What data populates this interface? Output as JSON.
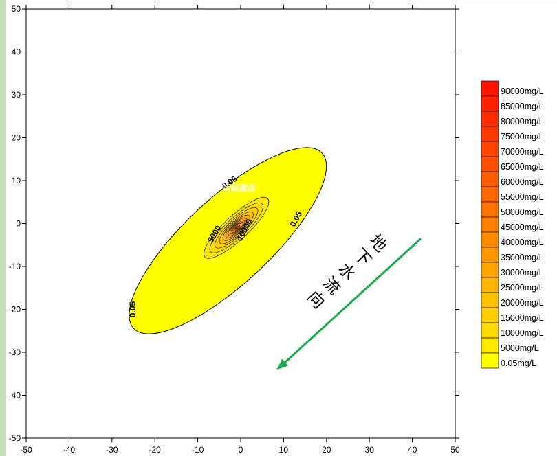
{
  "chart_data": {
    "type": "contour",
    "xlim": [
      -50,
      50
    ],
    "ylim": [
      -50,
      50
    ],
    "x_ticks": [
      -50,
      -40,
      -30,
      -20,
      -10,
      0,
      10,
      20,
      30,
      40,
      50
    ],
    "y_ticks": [
      -50,
      -40,
      -30,
      -20,
      -10,
      0,
      10,
      20,
      30,
      40,
      50
    ],
    "grid": false,
    "source": {
      "label": "污染源点",
      "x": -1,
      "y": -1
    },
    "plume": {
      "outer_contour_value": "0.05",
      "center": [
        -3,
        -4
      ],
      "orientation_deg": 43,
      "semi_major": 30,
      "semi_minor": 10,
      "fill_color": "#ffff00"
    },
    "inner_contours": [
      {
        "value": 5000,
        "rx": 10,
        "ry": 2.8,
        "color": "#ffe600"
      },
      {
        "value": 10000,
        "rx": 8.2,
        "ry": 2.3,
        "color": "#ffdc00"
      },
      {
        "value": 15000,
        "rx": 6.6,
        "ry": 1.9,
        "color": "#ffd000"
      },
      {
        "value": 20000,
        "rx": 5.2,
        "ry": 1.6,
        "color": "#ffc300"
      },
      {
        "value": 25000,
        "rx": 4.1,
        "ry": 1.35,
        "color": "#ffb500"
      },
      {
        "value": 30000,
        "rx": 3.2,
        "ry": 1.15,
        "color": "#ffa700"
      },
      {
        "value": 35000,
        "rx": 2.5,
        "ry": 0.95,
        "color": "#ff9a00"
      },
      {
        "value": 40000,
        "rx": 1.9,
        "ry": 0.8,
        "color": "#ff8c00"
      },
      {
        "value": 45000,
        "rx": 1.4,
        "ry": 0.65,
        "color": "#ff7e00"
      },
      {
        "value": 50000,
        "rx": 1.0,
        "ry": 0.5,
        "color": "#ff7000"
      }
    ],
    "contour_labels": [
      {
        "text": "0.05",
        "x": -2.5,
        "y": 9.5,
        "angle": -35
      },
      {
        "text": "0.05",
        "x": 13,
        "y": 1,
        "angle": -62
      },
      {
        "text": "0.05",
        "x": -25,
        "y": -20,
        "angle": -90
      },
      {
        "text": "5000",
        "x": -6,
        "y": -2.5,
        "angle": -60
      },
      {
        "text": "10000",
        "x": 1,
        "y": -1.5,
        "angle": -62
      }
    ],
    "flow_arrow": {
      "from": [
        42,
        -3.5
      ],
      "to": [
        8.5,
        -34
      ],
      "color": "#1aaa4c",
      "text_chars": [
        "地",
        "下",
        "水",
        "流",
        "向"
      ]
    },
    "legend": {
      "placement": "right",
      "entries": [
        {
          "label": "90000mg/L",
          "color": "#ff1400"
        },
        {
          "label": "85000mg/L",
          "color": "#ff2000"
        },
        {
          "label": "80000mg/L",
          "color": "#ff2c00"
        },
        {
          "label": "75000mg/L",
          "color": "#ff3800"
        },
        {
          "label": "70000mg/L",
          "color": "#ff4400"
        },
        {
          "label": "65000mg/L",
          "color": "#ff5000"
        },
        {
          "label": "60000mg/L",
          "color": "#ff5c00"
        },
        {
          "label": "55000mg/L",
          "color": "#ff6800"
        },
        {
          "label": "50000mg/L",
          "color": "#ff7400"
        },
        {
          "label": "45000mg/L",
          "color": "#ff8000"
        },
        {
          "label": "40000mg/L",
          "color": "#ff8c00"
        },
        {
          "label": "35000mg/L",
          "color": "#ff9800"
        },
        {
          "label": "30000mg/L",
          "color": "#ffa600"
        },
        {
          "label": "25000mg/L",
          "color": "#ffb400"
        },
        {
          "label": "20000mg/L",
          "color": "#ffc200"
        },
        {
          "label": "15000mg/L",
          "color": "#ffcf00"
        },
        {
          "label": "10000mg/L",
          "color": "#ffdc00"
        },
        {
          "label": "5000mg/L",
          "color": "#ffea00"
        },
        {
          "label": "0.05mg/L",
          "color": "#ffff00"
        }
      ]
    }
  }
}
